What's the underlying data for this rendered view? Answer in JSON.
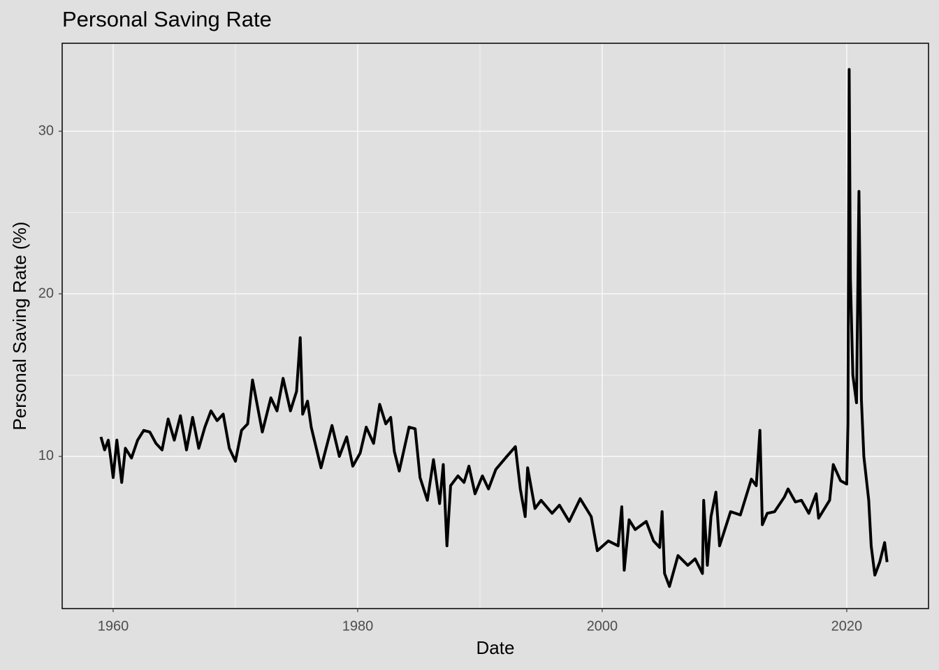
{
  "chart_data": {
    "type": "line",
    "title": "Personal Saving Rate",
    "x_label": "Date",
    "y_label": "Personal Saving Rate (%)",
    "x": [
      1959.0,
      1959.3,
      1959.6,
      1959.8,
      1960.0,
      1960.3,
      1960.7,
      1961.0,
      1961.5,
      1962.0,
      1962.5,
      1963.0,
      1963.5,
      1964.0,
      1964.5,
      1965.0,
      1965.5,
      1966.0,
      1966.5,
      1967.0,
      1967.5,
      1968.0,
      1968.5,
      1969.0,
      1969.5,
      1970.0,
      1970.5,
      1971.0,
      1971.4,
      1972.2,
      1972.9,
      1973.4,
      1973.9,
      1974.5,
      1975.0,
      1975.3,
      1975.5,
      1975.9,
      1976.2,
      1977.0,
      1977.9,
      1978.5,
      1979.1,
      1979.6,
      1980.2,
      1980.7,
      1981.3,
      1981.8,
      1982.3,
      1982.7,
      1983.0,
      1983.4,
      1984.2,
      1984.7,
      1985.1,
      1985.7,
      1986.2,
      1986.7,
      1987.0,
      1987.3,
      1987.6,
      1988.2,
      1988.7,
      1989.1,
      1989.6,
      1990.2,
      1990.7,
      1991.3,
      1992.2,
      1992.9,
      1993.3,
      1993.7,
      1993.9,
      1994.5,
      1995.0,
      1995.9,
      1996.5,
      1997.3,
      1998.2,
      1999.1,
      1999.6,
      2000.5,
      2001.3,
      2001.6,
      2001.8,
      2002.2,
      2002.7,
      2003.6,
      2004.2,
      2004.7,
      2004.9,
      2005.1,
      2005.5,
      2006.2,
      2007.0,
      2007.6,
      2008.2,
      2008.3,
      2008.6,
      2008.9,
      2009.3,
      2009.6,
      2010.5,
      2011.3,
      2012.2,
      2012.6,
      2012.9,
      2013.1,
      2013.5,
      2014.1,
      2014.9,
      2015.2,
      2015.8,
      2016.3,
      2016.9,
      2017.5,
      2017.7,
      2018.6,
      2018.9,
      2019.5,
      2020.0,
      2020.1,
      2020.2,
      2020.3,
      2020.5,
      2020.8,
      2021.0,
      2021.2,
      2021.4,
      2021.8,
      2022.0,
      2022.3,
      2022.7,
      2023.1,
      2023.3
    ],
    "values": [
      11.2,
      10.4,
      11.0,
      9.9,
      8.7,
      11.0,
      8.4,
      10.5,
      9.9,
      11.0,
      11.6,
      11.5,
      10.8,
      10.4,
      12.3,
      11.0,
      12.5,
      10.4,
      12.4,
      10.5,
      11.8,
      12.8,
      12.2,
      12.6,
      10.5,
      9.7,
      11.6,
      12.0,
      14.7,
      11.5,
      13.6,
      12.8,
      14.8,
      12.8,
      14.0,
      17.3,
      12.6,
      13.4,
      11.8,
      9.3,
      11.9,
      10.0,
      11.2,
      9.4,
      10.2,
      11.8,
      10.8,
      13.2,
      12.0,
      12.4,
      10.3,
      9.1,
      11.8,
      11.7,
      8.7,
      7.3,
      9.8,
      7.1,
      9.5,
      4.5,
      8.2,
      8.8,
      8.4,
      9.4,
      7.7,
      8.8,
      8.0,
      9.2,
      10.0,
      10.6,
      8.0,
      6.3,
      9.3,
      6.8,
      7.3,
      6.5,
      7.0,
      6.0,
      7.4,
      6.3,
      4.2,
      4.8,
      4.5,
      6.9,
      3.0,
      6.1,
      5.5,
      6.0,
      4.8,
      4.4,
      6.6,
      2.8,
      2.0,
      3.9,
      3.3,
      3.7,
      2.8,
      7.3,
      3.3,
      6.3,
      7.8,
      4.5,
      6.6,
      6.4,
      8.6,
      8.2,
      11.6,
      5.8,
      6.5,
      6.6,
      7.5,
      8.0,
      7.2,
      7.3,
      6.5,
      7.7,
      6.2,
      7.3,
      9.5,
      8.5,
      8.3,
      12.0,
      33.8,
      21.0,
      15.0,
      13.3,
      26.3,
      13.5,
      10.0,
      7.3,
      4.5,
      2.7,
      3.5,
      4.7,
      3.5
    ],
    "color": "#000000",
    "xlim": [
      1955.83,
      2026.69
    ],
    "xticks": [
      1960,
      1980,
      2000,
      2020
    ],
    "ylim": [
      0.64,
      35.41
    ],
    "yticks": [
      10,
      20,
      30
    ],
    "grid": true,
    "minor_grid": true
  }
}
